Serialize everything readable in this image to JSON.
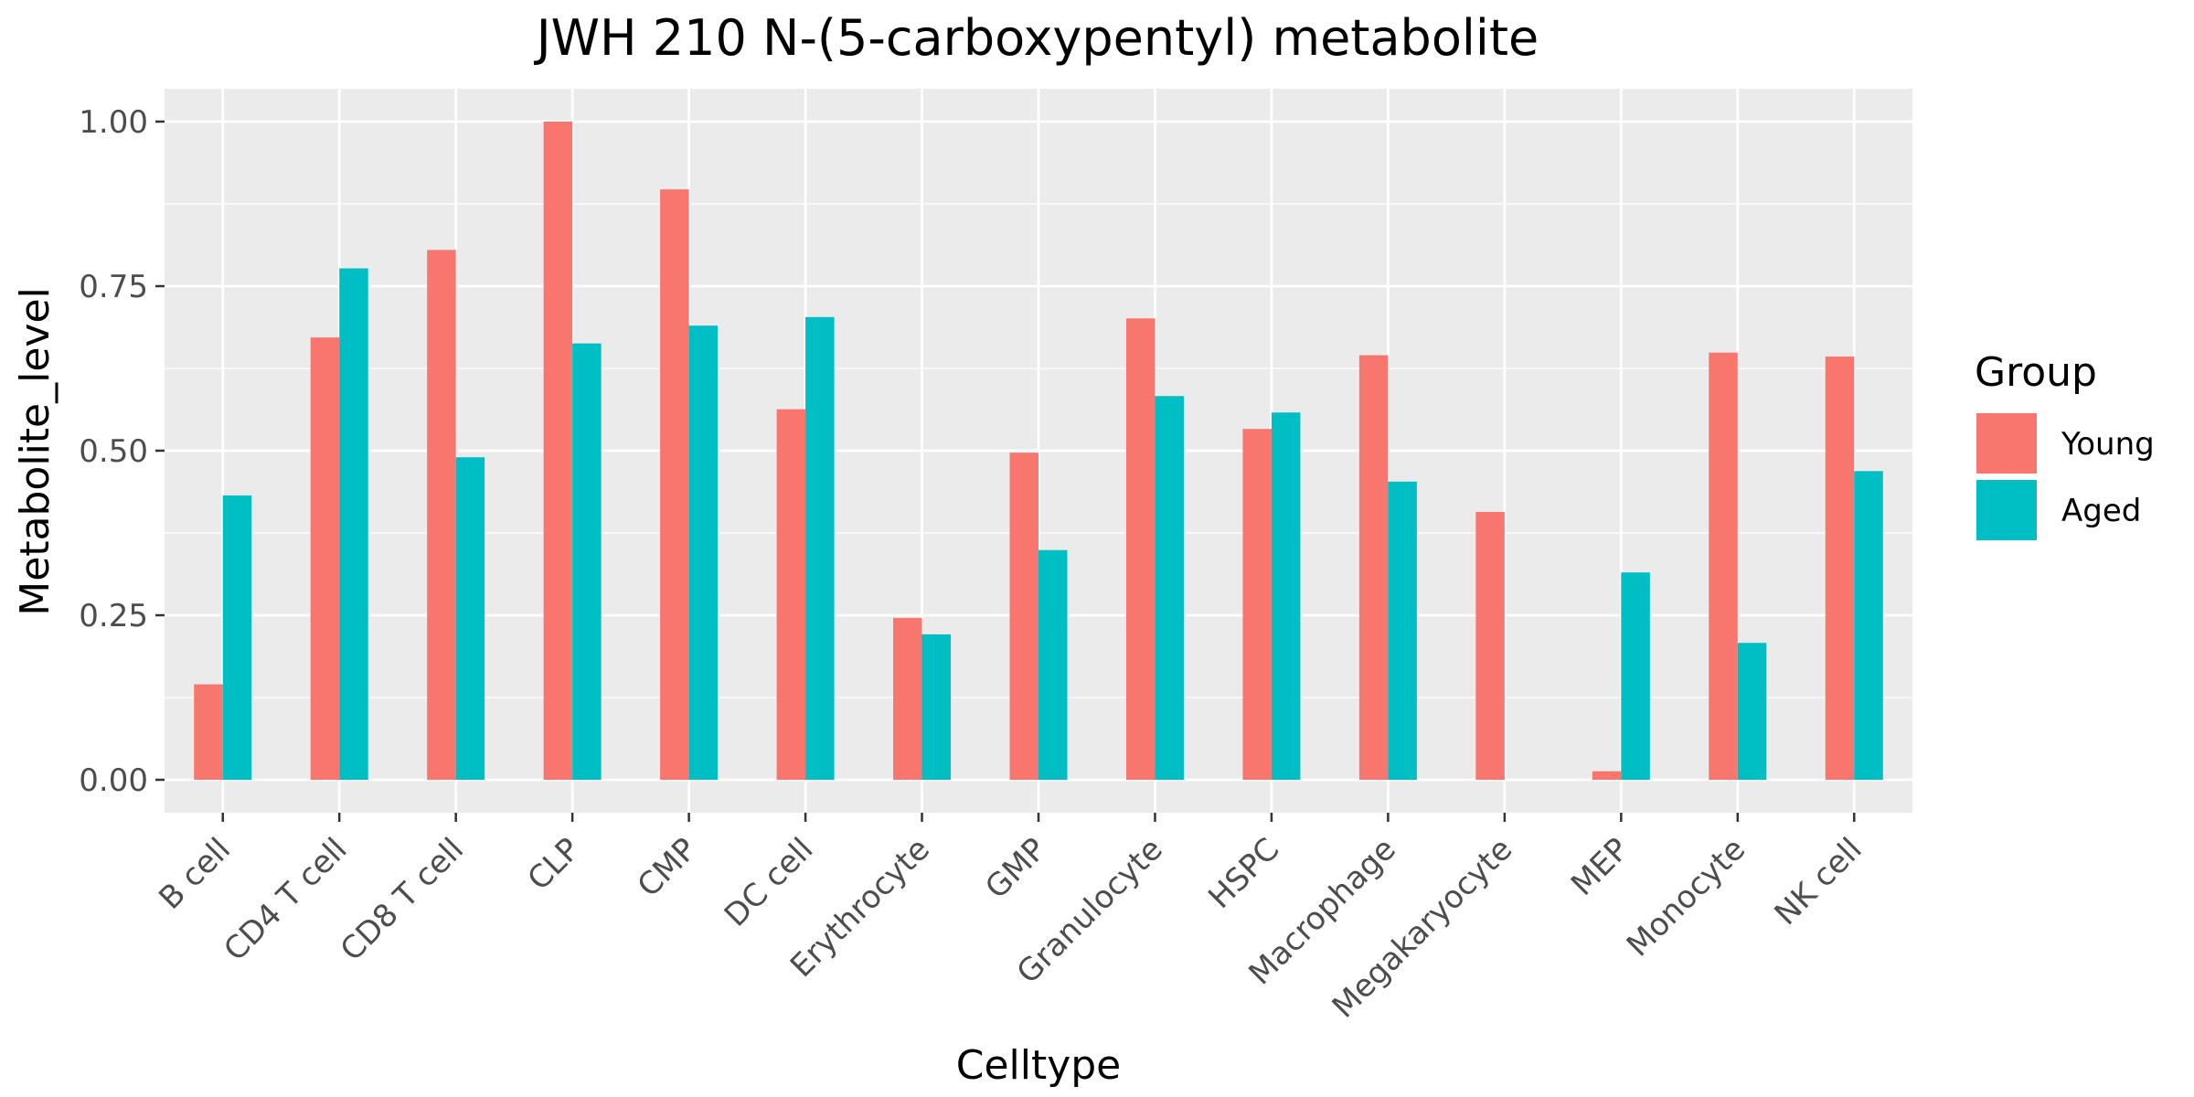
{
  "chart_data": {
    "type": "bar",
    "title": "JWH 210 N-(5-carboxypentyl) metabolite",
    "xlabel": "Celltype",
    "ylabel": "Metabolite_level",
    "categories": [
      "B cell",
      "CD4 T cell",
      "CD8 T cell",
      "CLP",
      "CMP",
      "DC cell",
      "Erythrocyte",
      "GMP",
      "Granulocyte",
      "HSPC",
      "Macrophage",
      "Megakaryocyte",
      "MEP",
      "Monocyte",
      "NK cell"
    ],
    "series": [
      {
        "name": "Young",
        "color": "#F8766D",
        "values": [
          0.145,
          0.672,
          0.805,
          1.0,
          0.897,
          0.563,
          0.246,
          0.497,
          0.701,
          0.533,
          0.645,
          0.407,
          0.013,
          0.649,
          0.643
        ]
      },
      {
        "name": "Aged",
        "color": "#00BFC4",
        "values": [
          0.432,
          0.777,
          0.49,
          0.663,
          0.69,
          0.703,
          0.221,
          0.349,
          0.583,
          0.558,
          0.453,
          0.0,
          0.315,
          0.208,
          0.469
        ]
      }
    ],
    "yticks": [
      {
        "value": 0.0,
        "label": "0.00"
      },
      {
        "value": 0.25,
        "label": "0.25"
      },
      {
        "value": 0.5,
        "label": "0.50"
      },
      {
        "value": 0.75,
        "label": "0.75"
      },
      {
        "value": 1.0,
        "label": "1.00"
      }
    ],
    "ylim": [
      -0.05,
      1.05
    ],
    "grid": true,
    "legend": {
      "title": "Group",
      "position": "right"
    }
  }
}
